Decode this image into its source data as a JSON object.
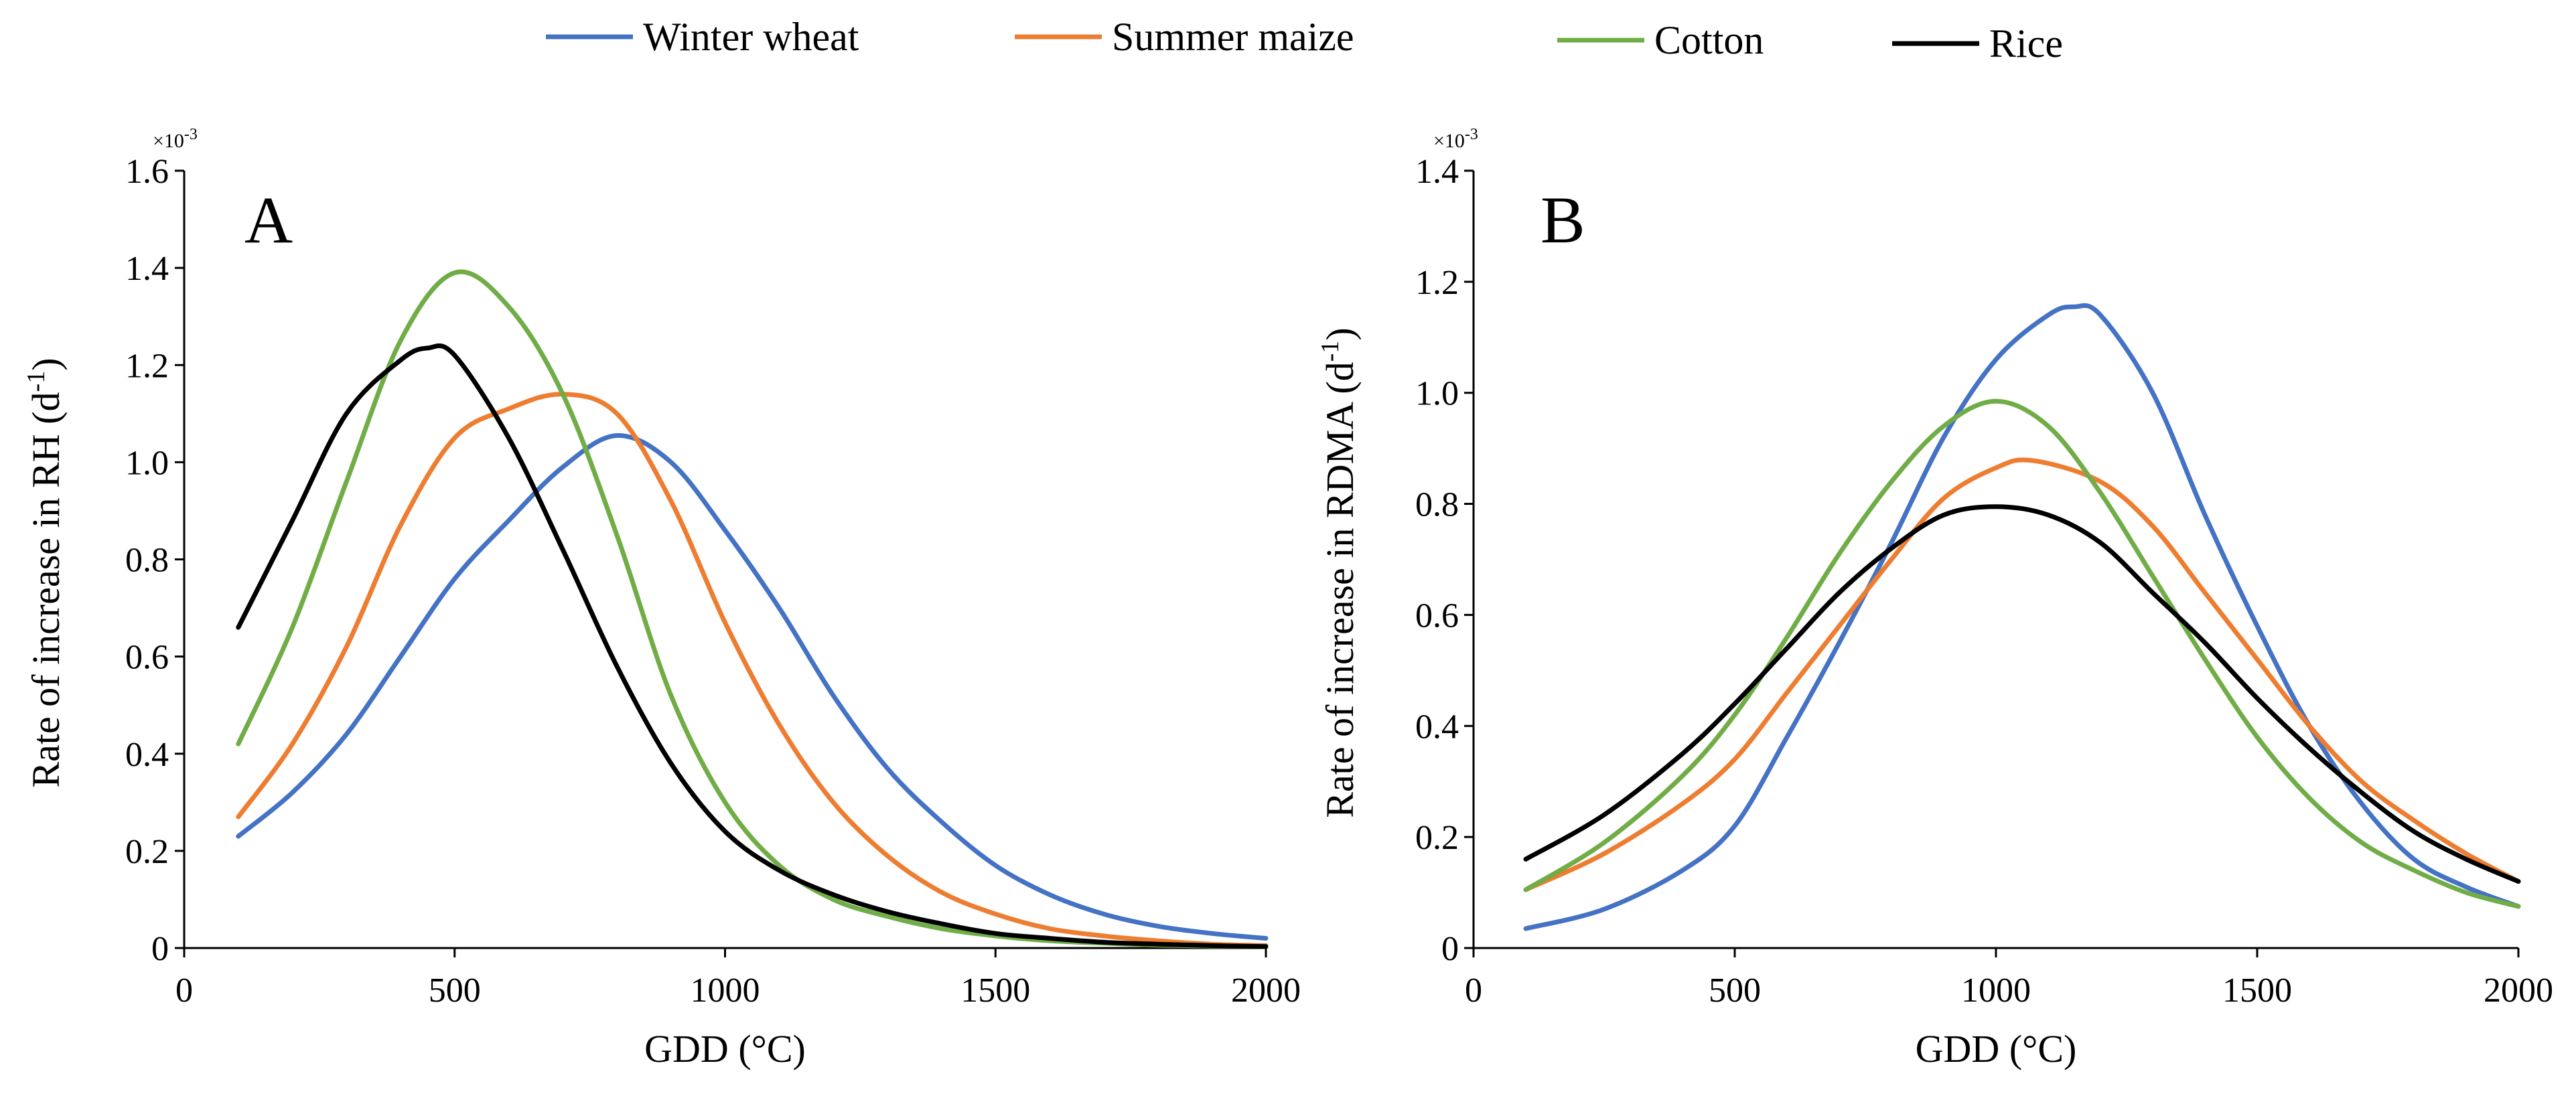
{
  "legend": [
    {
      "name": "Winter wheat",
      "color": "#4472C4"
    },
    {
      "name": "Summer maize",
      "color": "#ED7D31"
    },
    {
      "name": "Cotton",
      "color": "#70AD47"
    },
    {
      "name": "Rice",
      "color": "#000000"
    }
  ],
  "chart_data": [
    {
      "type": "line",
      "panel_label": "A",
      "xlabel": "GDD (°C)",
      "ylabel_main": "Rate of increase in RH (d",
      "ylabel_sup": "-1",
      "ylabel_end": ")",
      "y_multiplier": "×10",
      "y_multiplier_exp": "-3",
      "xlim": [
        0,
        2000
      ],
      "ylim": [
        0,
        1.6
      ],
      "xticks": [
        "0",
        "500",
        "1000",
        "1500",
        "2000"
      ],
      "yticks": [
        "0",
        "0.2",
        "0.4",
        "0.6",
        "0.8",
        "1.0",
        "1.2",
        "1.4",
        "1.6"
      ],
      "series": [
        {
          "name": "Winter wheat",
          "color": "#4472C4",
          "points": [
            [
              100,
              0.23
            ],
            [
              200,
              0.32
            ],
            [
              300,
              0.44
            ],
            [
              400,
              0.6
            ],
            [
              500,
              0.76
            ],
            [
              600,
              0.88
            ],
            [
              700,
              0.99
            ],
            [
              800,
              1.055
            ],
            [
              900,
              1.0
            ],
            [
              1000,
              0.86
            ],
            [
              1100,
              0.7
            ],
            [
              1200,
              0.52
            ],
            [
              1300,
              0.37
            ],
            [
              1400,
              0.26
            ],
            [
              1500,
              0.17
            ],
            [
              1600,
              0.11
            ],
            [
              1700,
              0.07
            ],
            [
              1800,
              0.045
            ],
            [
              1900,
              0.03
            ],
            [
              2000,
              0.02
            ]
          ]
        },
        {
          "name": "Summer maize",
          "color": "#ED7D31",
          "points": [
            [
              100,
              0.27
            ],
            [
              200,
              0.42
            ],
            [
              300,
              0.62
            ],
            [
              400,
              0.87
            ],
            [
              500,
              1.05
            ],
            [
              600,
              1.11
            ],
            [
              700,
              1.14
            ],
            [
              800,
              1.1
            ],
            [
              900,
              0.92
            ],
            [
              1000,
              0.67
            ],
            [
              1100,
              0.46
            ],
            [
              1200,
              0.3
            ],
            [
              1300,
              0.19
            ],
            [
              1400,
              0.115
            ],
            [
              1500,
              0.07
            ],
            [
              1600,
              0.04
            ],
            [
              1700,
              0.025
            ],
            [
              1800,
              0.015
            ],
            [
              1900,
              0.008
            ],
            [
              2000,
              0.005
            ]
          ]
        },
        {
          "name": "Cotton",
          "color": "#70AD47",
          "points": [
            [
              100,
              0.42
            ],
            [
              200,
              0.66
            ],
            [
              300,
              0.96
            ],
            [
              400,
              1.25
            ],
            [
              500,
              1.39
            ],
            [
              600,
              1.32
            ],
            [
              700,
              1.14
            ],
            [
              800,
              0.85
            ],
            [
              900,
              0.52
            ],
            [
              1000,
              0.3
            ],
            [
              1100,
              0.17
            ],
            [
              1200,
              0.1
            ],
            [
              1300,
              0.065
            ],
            [
              1400,
              0.04
            ],
            [
              1500,
              0.025
            ],
            [
              1600,
              0.015
            ],
            [
              1700,
              0.01
            ],
            [
              1800,
              0.006
            ],
            [
              1900,
              0.004
            ],
            [
              2000,
              0.003
            ]
          ]
        },
        {
          "name": "Rice",
          "color": "#000000",
          "points": [
            [
              100,
              0.66
            ],
            [
              200,
              0.88
            ],
            [
              300,
              1.1
            ],
            [
              400,
              1.21
            ],
            [
              450,
              1.235
            ],
            [
              500,
              1.22
            ],
            [
              600,
              1.05
            ],
            [
              700,
              0.82
            ],
            [
              800,
              0.58
            ],
            [
              900,
              0.38
            ],
            [
              1000,
              0.24
            ],
            [
              1100,
              0.16
            ],
            [
              1200,
              0.11
            ],
            [
              1300,
              0.075
            ],
            [
              1400,
              0.05
            ],
            [
              1500,
              0.03
            ],
            [
              1600,
              0.02
            ],
            [
              1700,
              0.012
            ],
            [
              1800,
              0.008
            ],
            [
              1900,
              0.005
            ],
            [
              2000,
              0.003
            ]
          ]
        }
      ]
    },
    {
      "type": "line",
      "panel_label": "B",
      "xlabel": "GDD (°C)",
      "ylabel_main": "Rate of increase in RDMA (d",
      "ylabel_sup": "-1",
      "ylabel_end": ")",
      "y_multiplier": "×10",
      "y_multiplier_exp": "-3",
      "xlim": [
        0,
        2000
      ],
      "ylim": [
        0,
        1.4
      ],
      "xticks": [
        "0",
        "500",
        "1000",
        "1500",
        "2000"
      ],
      "yticks": [
        "0",
        "0.2",
        "0.4",
        "0.6",
        "0.8",
        "1.0",
        "1.2",
        "1.4"
      ],
      "series": [
        {
          "name": "Winter wheat",
          "color": "#4472C4",
          "points": [
            [
              100,
              0.035
            ],
            [
              250,
              0.07
            ],
            [
              400,
              0.14
            ],
            [
              500,
              0.22
            ],
            [
              600,
              0.38
            ],
            [
              700,
              0.55
            ],
            [
              800,
              0.73
            ],
            [
              900,
              0.92
            ],
            [
              1000,
              1.06
            ],
            [
              1100,
              1.14
            ],
            [
              1150,
              1.155
            ],
            [
              1200,
              1.14
            ],
            [
              1300,
              1.0
            ],
            [
              1400,
              0.78
            ],
            [
              1500,
              0.58
            ],
            [
              1600,
              0.4
            ],
            [
              1700,
              0.26
            ],
            [
              1800,
              0.16
            ],
            [
              1900,
              0.11
            ],
            [
              2000,
              0.075
            ]
          ]
        },
        {
          "name": "Summer maize",
          "color": "#ED7D31",
          "points": [
            [
              100,
              0.105
            ],
            [
              250,
              0.17
            ],
            [
              400,
              0.26
            ],
            [
              500,
              0.34
            ],
            [
              600,
              0.46
            ],
            [
              700,
              0.58
            ],
            [
              800,
              0.7
            ],
            [
              900,
              0.81
            ],
            [
              1000,
              0.865
            ],
            [
              1070,
              0.878
            ],
            [
              1200,
              0.84
            ],
            [
              1300,
              0.76
            ],
            [
              1400,
              0.64
            ],
            [
              1500,
              0.52
            ],
            [
              1600,
              0.4
            ],
            [
              1700,
              0.3
            ],
            [
              1800,
              0.23
            ],
            [
              1900,
              0.17
            ],
            [
              2000,
              0.12
            ]
          ]
        },
        {
          "name": "Cotton",
          "color": "#70AD47",
          "points": [
            [
              100,
              0.105
            ],
            [
              250,
              0.19
            ],
            [
              400,
              0.31
            ],
            [
              500,
              0.42
            ],
            [
              600,
              0.56
            ],
            [
              700,
              0.71
            ],
            [
              800,
              0.84
            ],
            [
              900,
              0.94
            ],
            [
              1000,
              0.985
            ],
            [
              1100,
              0.94
            ],
            [
              1200,
              0.82
            ],
            [
              1300,
              0.67
            ],
            [
              1400,
              0.52
            ],
            [
              1500,
              0.38
            ],
            [
              1600,
              0.27
            ],
            [
              1700,
              0.19
            ],
            [
              1800,
              0.14
            ],
            [
              1900,
              0.1
            ],
            [
              2000,
              0.075
            ]
          ]
        },
        {
          "name": "Rice",
          "color": "#000000",
          "points": [
            [
              100,
              0.16
            ],
            [
              250,
              0.24
            ],
            [
              400,
              0.35
            ],
            [
              500,
              0.44
            ],
            [
              600,
              0.54
            ],
            [
              700,
              0.64
            ],
            [
              800,
              0.72
            ],
            [
              900,
              0.78
            ],
            [
              1000,
              0.795
            ],
            [
              1100,
              0.78
            ],
            [
              1200,
              0.73
            ],
            [
              1300,
              0.64
            ],
            [
              1400,
              0.55
            ],
            [
              1500,
              0.45
            ],
            [
              1600,
              0.36
            ],
            [
              1700,
              0.28
            ],
            [
              1800,
              0.21
            ],
            [
              1900,
              0.16
            ],
            [
              2000,
              0.12
            ]
          ]
        }
      ]
    }
  ]
}
